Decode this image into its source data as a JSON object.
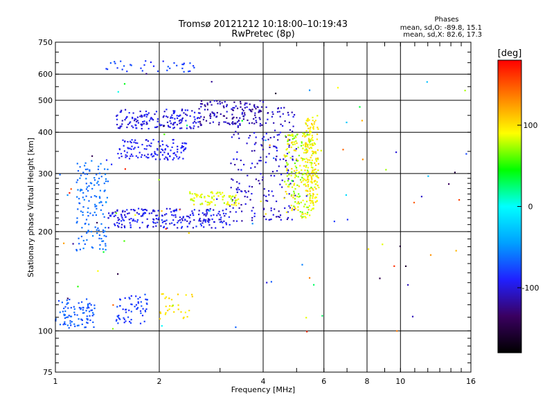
{
  "chart_data": {
    "type": "scatter",
    "title": "Tromsø 20121212 10:18:00–10:19:43",
    "subtitle": "RwPretec (8p)",
    "xlabel": "Frequency [MHz]",
    "ylabel": "Stationary phase Virtual Height [km]",
    "x_scale": "log",
    "y_scale": "log",
    "xlim": [
      1,
      16
    ],
    "ylim": [
      75,
      750
    ],
    "x_ticks": [
      1,
      2,
      4,
      6,
      8,
      10,
      16
    ],
    "x_ticklabels": [
      "1",
      "2",
      "4",
      "6",
      "8",
      "10",
      "16"
    ],
    "y_ticks": [
      75,
      100,
      200,
      300,
      400,
      500,
      600,
      750
    ],
    "y_ticklabels": [
      "75",
      "100",
      "200",
      "300",
      "400",
      "500",
      "600",
      "750"
    ],
    "grid": true,
    "annotation": {
      "title": "Phases",
      "line1": "mean, sd,O: -89.8, 15.1",
      "line2": "mean, sd,X: 82.6, 17.3"
    },
    "colorbar": {
      "label": "[deg]",
      "ticks": [
        100,
        0,
        -100
      ],
      "ticklabels": [
        "100",
        "0",
        "-100"
      ],
      "range": [
        -180,
        180
      ],
      "colors": [
        "#000000",
        "#3a0060",
        "#2020ff",
        "#00a0ff",
        "#00ffff",
        "#00ff00",
        "#ffff00",
        "#ff8000",
        "#ff0000"
      ]
    },
    "series": [
      {
        "f": [
          1.0,
          1.3
        ],
        "h": [
          102,
          125
        ],
        "phase": [
          -80,
          -60
        ],
        "count": 90
      },
      {
        "f": [
          1.5,
          1.85
        ],
        "h": [
          105,
          130
        ],
        "phase": [
          -90,
          -70
        ],
        "count": 60
      },
      {
        "f": [
          1.15,
          1.42
        ],
        "h": [
          175,
          330
        ],
        "phase": [
          -70,
          -55
        ],
        "count": 140
      },
      {
        "f": [
          1.42,
          3.2
        ],
        "h": [
          205,
          235
        ],
        "phase": [
          -110,
          -80
        ],
        "count": 230
      },
      {
        "f": [
          3.2,
          5.0
        ],
        "h": [
          215,
          480
        ],
        "phase": [
          -120,
          -90
        ],
        "count": 230
      },
      {
        "f": [
          4.6,
          5.6
        ],
        "h": [
          220,
          400
        ],
        "phase": [
          60,
          110
        ],
        "count": 220
      },
      {
        "f": [
          5.3,
          5.8
        ],
        "h": [
          240,
          450
        ],
        "phase": [
          80,
          110
        ],
        "count": 150
      },
      {
        "f": [
          1.5,
          2.4
        ],
        "h": [
          330,
          380
        ],
        "phase": [
          -100,
          -85
        ],
        "count": 120
      },
      {
        "f": [
          1.5,
          2.6
        ],
        "h": [
          410,
          470
        ],
        "phase": [
          -110,
          -85
        ],
        "count": 150
      },
      {
        "f": [
          2.6,
          4.0
        ],
        "h": [
          420,
          500
        ],
        "phase": [
          -130,
          -95
        ],
        "count": 120
      },
      {
        "f": [
          2.45,
          3.4
        ],
        "h": [
          240,
          265
        ],
        "phase": [
          70,
          100
        ],
        "count": 80
      },
      {
        "f": [
          2.0,
          2.5
        ],
        "h": [
          108,
          130
        ],
        "phase": [
          90,
          110
        ],
        "count": 30
      },
      {
        "f": [
          1.4,
          2.6
        ],
        "h": [
          610,
          660
        ],
        "phase": [
          -90,
          -70
        ],
        "count": 35
      },
      {
        "f": [
          1.0,
          16.0
        ],
        "h": [
          95,
          650
        ],
        "phase": [
          -160,
          170
        ],
        "count": 90
      }
    ]
  }
}
